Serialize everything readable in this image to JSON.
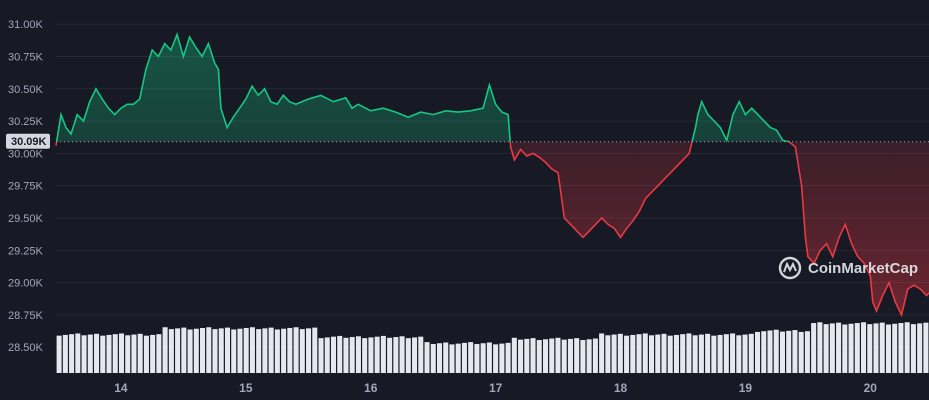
{
  "chart_data": {
    "type": "line",
    "baseline": 30090,
    "ylim": [
      28300,
      31110
    ],
    "y_ticks": [
      "31.00K",
      "30.75K",
      "30.50K",
      "30.25K",
      "30.00K",
      "29.75K",
      "29.50K",
      "29.25K",
      "29.00K",
      "28.75K",
      "28.50K"
    ],
    "y_tick_values": [
      31000,
      30750,
      30500,
      30250,
      30000,
      29750,
      29500,
      29250,
      29000,
      28750,
      28500
    ],
    "x_ticks": [
      "14",
      "15",
      "16",
      "17",
      "18",
      "19",
      "20"
    ],
    "x_tick_values": [
      14,
      15,
      16,
      17,
      18,
      19,
      20
    ],
    "xlim": [
      13.48,
      20.47
    ],
    "current_price_label": "30.09K",
    "watermark": "CoinMarketCap",
    "colors": {
      "up": "#16c784",
      "down": "#ea3943",
      "volume": "#e6e8ef",
      "background": "#171924",
      "grid": "#262a36"
    },
    "price_points": [
      [
        13.48,
        30060
      ],
      [
        13.52,
        30300
      ],
      [
        13.56,
        30200
      ],
      [
        13.6,
        30150
      ],
      [
        13.65,
        30300
      ],
      [
        13.7,
        30250
      ],
      [
        13.75,
        30400
      ],
      [
        13.8,
        30500
      ],
      [
        13.85,
        30420
      ],
      [
        13.9,
        30350
      ],
      [
        13.95,
        30300
      ],
      [
        14.0,
        30350
      ],
      [
        14.05,
        30380
      ],
      [
        14.1,
        30380
      ],
      [
        14.15,
        30420
      ],
      [
        14.2,
        30650
      ],
      [
        14.25,
        30800
      ],
      [
        14.3,
        30750
      ],
      [
        14.35,
        30850
      ],
      [
        14.4,
        30800
      ],
      [
        14.45,
        30920
      ],
      [
        14.5,
        30750
      ],
      [
        14.55,
        30900
      ],
      [
        14.6,
        30820
      ],
      [
        14.65,
        30750
      ],
      [
        14.7,
        30850
      ],
      [
        14.75,
        30700
      ],
      [
        14.78,
        30650
      ],
      [
        14.8,
        30350
      ],
      [
        14.85,
        30200
      ],
      [
        14.9,
        30280
      ],
      [
        14.95,
        30350
      ],
      [
        15.0,
        30420
      ],
      [
        15.05,
        30520
      ],
      [
        15.1,
        30450
      ],
      [
        15.15,
        30500
      ],
      [
        15.2,
        30400
      ],
      [
        15.25,
        30380
      ],
      [
        15.3,
        30450
      ],
      [
        15.35,
        30400
      ],
      [
        15.4,
        30380
      ],
      [
        15.5,
        30420
      ],
      [
        15.6,
        30450
      ],
      [
        15.7,
        30400
      ],
      [
        15.8,
        30430
      ],
      [
        15.85,
        30350
      ],
      [
        15.9,
        30380
      ],
      [
        16.0,
        30330
      ],
      [
        16.1,
        30350
      ],
      [
        16.2,
        30320
      ],
      [
        16.3,
        30280
      ],
      [
        16.4,
        30320
      ],
      [
        16.5,
        30300
      ],
      [
        16.6,
        30330
      ],
      [
        16.7,
        30320
      ],
      [
        16.8,
        30330
      ],
      [
        16.9,
        30350
      ],
      [
        16.95,
        30530
      ],
      [
        17.0,
        30380
      ],
      [
        17.05,
        30320
      ],
      [
        17.1,
        30300
      ],
      [
        17.12,
        30050
      ],
      [
        17.15,
        29950
      ],
      [
        17.2,
        30030
      ],
      [
        17.25,
        29980
      ],
      [
        17.3,
        30000
      ],
      [
        17.35,
        29970
      ],
      [
        17.4,
        29930
      ],
      [
        17.45,
        29880
      ],
      [
        17.5,
        29850
      ],
      [
        17.55,
        29500
      ],
      [
        17.6,
        29450
      ],
      [
        17.65,
        29400
      ],
      [
        17.7,
        29350
      ],
      [
        17.75,
        29400
      ],
      [
        17.8,
        29450
      ],
      [
        17.85,
        29500
      ],
      [
        17.9,
        29450
      ],
      [
        17.95,
        29420
      ],
      [
        18.0,
        29350
      ],
      [
        18.05,
        29420
      ],
      [
        18.1,
        29480
      ],
      [
        18.15,
        29550
      ],
      [
        18.2,
        29650
      ],
      [
        18.25,
        29700
      ],
      [
        18.3,
        29750
      ],
      [
        18.35,
        29800
      ],
      [
        18.4,
        29850
      ],
      [
        18.45,
        29900
      ],
      [
        18.5,
        29950
      ],
      [
        18.55,
        30000
      ],
      [
        18.6,
        30200
      ],
      [
        18.62,
        30300
      ],
      [
        18.65,
        30400
      ],
      [
        18.7,
        30300
      ],
      [
        18.75,
        30250
      ],
      [
        18.8,
        30200
      ],
      [
        18.85,
        30100
      ],
      [
        18.9,
        30300
      ],
      [
        18.95,
        30400
      ],
      [
        19.0,
        30300
      ],
      [
        19.05,
        30350
      ],
      [
        19.1,
        30300
      ],
      [
        19.15,
        30250
      ],
      [
        19.2,
        30200
      ],
      [
        19.25,
        30180
      ],
      [
        19.3,
        30100
      ],
      [
        19.35,
        30090
      ],
      [
        19.4,
        30050
      ],
      [
        19.45,
        29750
      ],
      [
        19.48,
        29350
      ],
      [
        19.5,
        29200
      ],
      [
        19.55,
        29150
      ],
      [
        19.6,
        29250
      ],
      [
        19.65,
        29300
      ],
      [
        19.7,
        29200
      ],
      [
        19.75,
        29350
      ],
      [
        19.8,
        29450
      ],
      [
        19.85,
        29300
      ],
      [
        19.9,
        29200
      ],
      [
        19.95,
        29150
      ],
      [
        20.0,
        29050
      ],
      [
        20.02,
        28850
      ],
      [
        20.05,
        28780
      ],
      [
        20.1,
        28900
      ],
      [
        20.15,
        29000
      ],
      [
        20.2,
        28850
      ],
      [
        20.25,
        28750
      ],
      [
        20.3,
        28950
      ],
      [
        20.35,
        28980
      ],
      [
        20.4,
        28950
      ],
      [
        20.45,
        28900
      ],
      [
        20.47,
        28920
      ]
    ],
    "volume_bar_count": 140
  }
}
